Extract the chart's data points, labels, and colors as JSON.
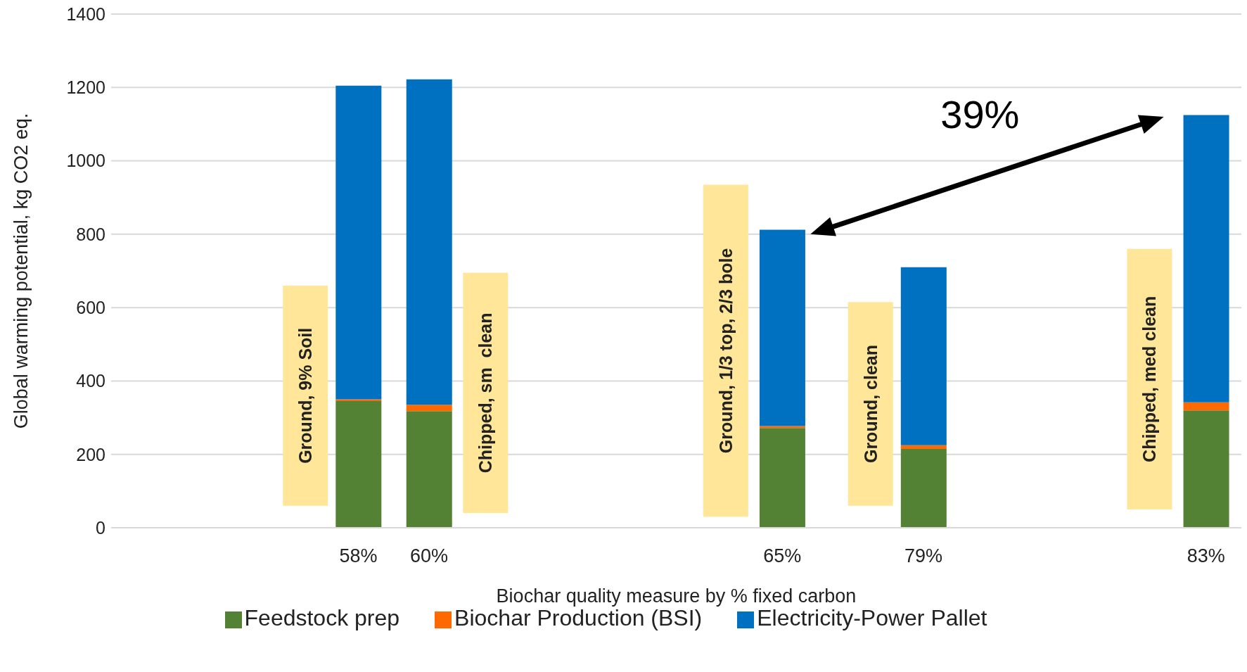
{
  "chart_data": {
    "type": "bar",
    "stacked": true,
    "xlabel": "Biochar quality measure by % fixed carbon",
    "ylabel": "Global warming potential, kg CO2 eq.",
    "categories": [
      null,
      null,
      null,
      "58%",
      "60%",
      null,
      null,
      null,
      null,
      "65%",
      null,
      "79%",
      null,
      null,
      null,
      "83%"
    ],
    "series": [
      {
        "name": "Feedstock prep",
        "color": "#548235",
        "values": [
          null,
          null,
          null,
          345,
          318,
          null,
          null,
          null,
          null,
          272,
          null,
          215,
          null,
          null,
          null,
          320
        ]
      },
      {
        "name": "Biochar Production (BSI)",
        "color": "#ff6a00",
        "values": [
          null,
          null,
          null,
          5,
          17,
          null,
          null,
          null,
          null,
          5,
          null,
          10,
          null,
          null,
          null,
          22
        ]
      },
      {
        "name": "Electricity-Power Pallet",
        "color": "#0070c0",
        "values": [
          null,
          null,
          null,
          855,
          887,
          null,
          null,
          null,
          null,
          535,
          null,
          485,
          null,
          null,
          null,
          783
        ]
      }
    ],
    "ylim": [
      0,
      1400
    ],
    "yticks": [
      0,
      200,
      400,
      600,
      800,
      1000,
      1200,
      1400
    ],
    "grid": "y",
    "legend": "bottom",
    "annotations": [
      "Ground, 9% Soil",
      "Chipped, sm  clean",
      "Ground, 1/3 top, 2/3 bole",
      "Ground, clean",
      "Chipped, med clean",
      "39%"
    ]
  }
}
